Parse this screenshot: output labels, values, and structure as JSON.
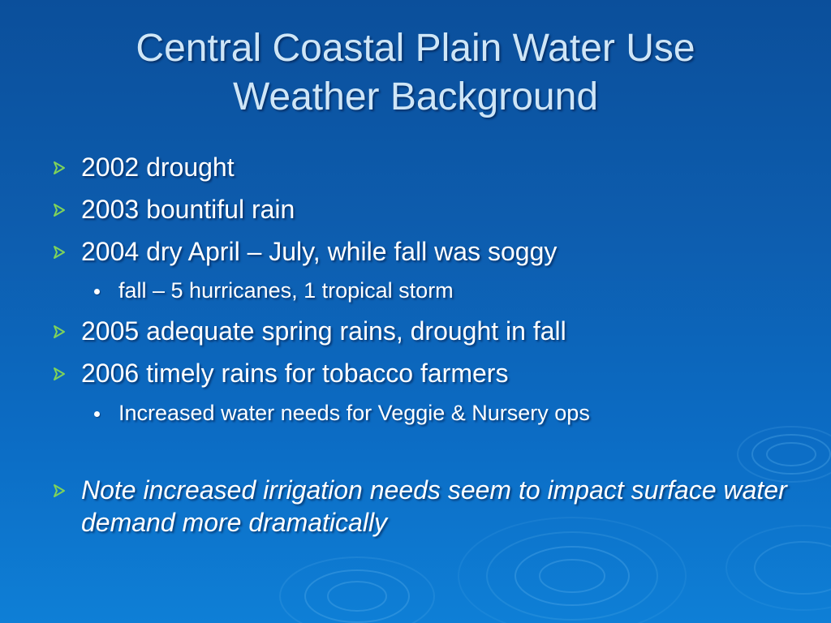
{
  "slide": {
    "title_lines": [
      "Central Coastal Plain Water Use",
      "Weather Background"
    ],
    "bullets": [
      {
        "level": 1,
        "text": "2002 drought"
      },
      {
        "level": 1,
        "text": "2003 bountiful rain"
      },
      {
        "level": 1,
        "text": "2004 dry April – July, while fall was soggy"
      },
      {
        "level": 2,
        "text": "fall – 5 hurricanes, 1 tropical storm"
      },
      {
        "level": 1,
        "text": "2005 adequate spring rains, drought in fall"
      },
      {
        "level": 1,
        "text": "2006 timely rains for tobacco farmers"
      },
      {
        "level": 2,
        "text": "Increased water needs for Veggie & Nursery ops"
      },
      {
        "level": 1,
        "text": "Note increased irrigation needs seem to impact surface water demand more dramatically",
        "italic": true
      }
    ],
    "colors": {
      "title_text": "#cfe6f7",
      "body_text": "#ffffff",
      "bullet_arrow": "#7fd35a",
      "background_top": "#0b4f9b",
      "background_bottom": "#0e7fd6"
    },
    "icons": {
      "level1": "arrow-bullet-icon",
      "level2": "dot-bullet-icon"
    }
  }
}
